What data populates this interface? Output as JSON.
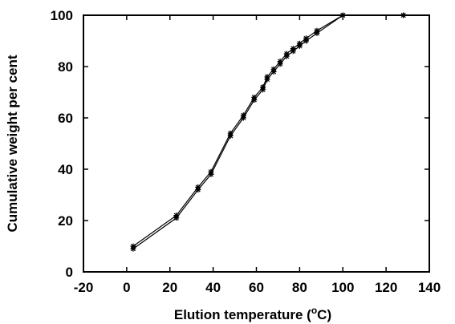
{
  "chart_data": {
    "type": "line",
    "title": "",
    "xlabel": "Elution temperature (",
    "xlabel_sup": "o",
    "xlabel_tail": "C)",
    "ylabel": "Cumulative weight per cent",
    "xlim": [
      -20,
      140
    ],
    "ylim": [
      0,
      100
    ],
    "xticks": [
      -20,
      0,
      20,
      40,
      60,
      80,
      100,
      120,
      140
    ],
    "yticks": [
      0,
      20,
      40,
      60,
      80,
      100
    ],
    "grid": false,
    "legend": "none",
    "colors": {
      "line": "#000000",
      "axis": "#000000"
    },
    "series": [
      {
        "marker": "star",
        "x": [
          3,
          23,
          33,
          39,
          48,
          54,
          59,
          63,
          65,
          68,
          71,
          74,
          77,
          80,
          83,
          88,
          100,
          128
        ],
        "y": [
          10,
          22,
          33,
          39,
          54,
          61,
          68,
          72,
          76,
          79,
          82,
          85,
          87,
          89,
          91,
          94,
          100,
          100
        ]
      },
      {
        "marker": "star",
        "x": [
          3,
          23,
          33,
          39,
          48,
          54,
          59,
          63,
          65,
          68,
          71,
          74,
          77,
          80,
          83,
          88,
          100,
          128
        ],
        "y": [
          9,
          21,
          32,
          38,
          53,
          60,
          67,
          71,
          75,
          78,
          81,
          84,
          86,
          88,
          90,
          93,
          100,
          100
        ]
      }
    ]
  }
}
